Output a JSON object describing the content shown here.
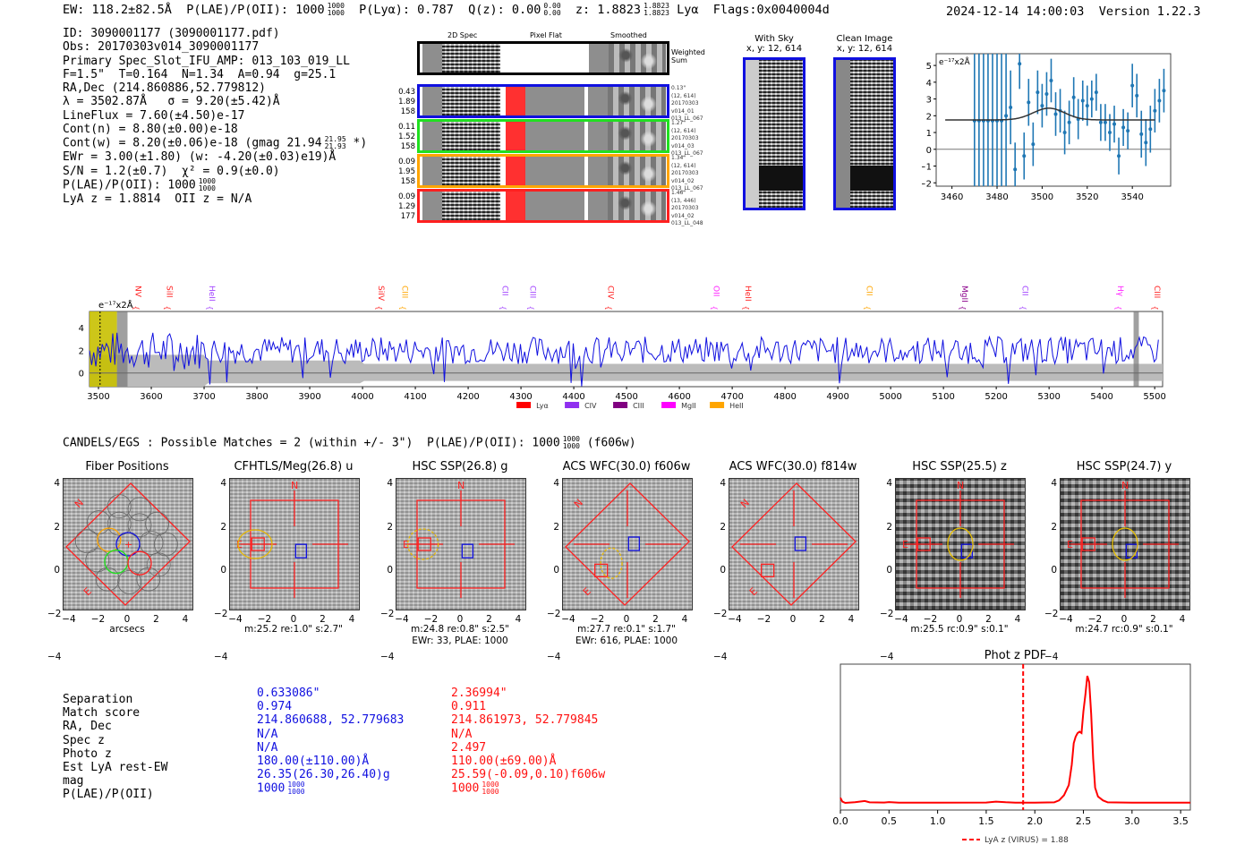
{
  "header": {
    "ew": "EW: 118.2±82.5Å",
    "plae_label": "P(LAE)/P(OII): 1000",
    "plae_hi": "1000",
    "plae_lo": "1000",
    "plya": "P(Lyα): 0.787",
    "qz": "Q(z): 0.00",
    "qz_hi": "0.00",
    "qz_lo": "0.00",
    "z": "z: 1.8823",
    "z_hi": "1.8823",
    "z_lo": "1.8823",
    "line": "Lyα",
    "flags": "Flags:0x0040004d",
    "timestamp": "2024-12-14 14:00:03",
    "version": "Version 1.22.3"
  },
  "info": {
    "id": "ID: 3090001177 (3090001177.pdf)",
    "obs": "Obs: 20170303v014_3090001177",
    "primary": "Primary Spec_Slot_IFU_AMP: 013_103_019_LL",
    "params": "F=1.5\"  T=0.164  N=1.34  A=0.94  g=25.1",
    "radec": "RA,Dec (214.860886,52.779812)",
    "lambda": "λ = 3502.87Å   σ = 9.20(±5.42)Å",
    "lineflux": "LineFlux = 7.60(±4.50)e-17",
    "cont_n": "Cont(n) = 8.80(±0.00)e-18",
    "cont_w": "Cont(w) = 8.20(±0.06)e-18 (gmag 21.94",
    "cont_w_hi": "21.95",
    "cont_w_lo": "21.93",
    "cont_w_tail": " *)",
    "ewr": "EWr = 3.00(±1.80) (w: -4.20(±0.03)e19)Å",
    "sn": "S/N = 1.2(±0.7)  χ² = 0.9(±0.0)",
    "plae": "P(LAE)/P(OII): 1000",
    "plae_hi": "1000",
    "plae_lo": "1000",
    "lyaz": "LyA z = 1.8814  OII z = N/A"
  },
  "fiber_panel": {
    "col_labels": [
      "2D Spec",
      "Pixel Flat",
      "Smoothed"
    ],
    "weighted_sum_label": "Weighted\nSum",
    "fibers": [
      {
        "color": "#1010e0",
        "stats": [
          "0.43",
          "1.89",
          "158"
        ],
        "meta": [
          "0.13\"",
          "(12, 614)",
          "20170303",
          "v014_01",
          "013_LL_067"
        ]
      },
      {
        "color": "#20e020",
        "stats": [
          "0.11",
          "1.52",
          "158"
        ],
        "meta": [
          "1.27\"",
          "(12, 614)",
          "20170303",
          "v014_03",
          "013_LL_067"
        ]
      },
      {
        "color": "#ffa500",
        "stats": [
          "0.09",
          "1.95",
          "158"
        ],
        "meta": [
          "1.34\"",
          "(12, 614)",
          "20170303",
          "v014_02",
          "013_LL_067"
        ]
      },
      {
        "color": "#ff2020",
        "stats": [
          "0.09",
          "1.29",
          "177"
        ],
        "meta": [
          "1.46\"",
          "(13, 446)",
          "20170303",
          "v014_02",
          "013_LL_048"
        ]
      }
    ]
  },
  "thumbs": {
    "with_sky": {
      "title": "With Sky",
      "coords": "x, y: 12, 614"
    },
    "clean": {
      "title": "Clean Image",
      "coords": "x, y: 12, 614"
    }
  },
  "chart_data": [
    {
      "type": "scatter",
      "title": "",
      "annotation": "e⁻¹⁷x2Å",
      "xlim": [
        3453,
        3557
      ],
      "ylim": [
        -2.2,
        5.7
      ],
      "xticks": [
        3460,
        3480,
        3500,
        3520,
        3540
      ],
      "yticks": [
        -2,
        -1,
        0,
        1,
        2,
        3,
        4,
        5
      ],
      "points": [
        {
          "x": 3470,
          "y": 1.7,
          "e": 9
        },
        {
          "x": 3472,
          "y": 1.7,
          "e": 9
        },
        {
          "x": 3474,
          "y": 1.7,
          "e": 9
        },
        {
          "x": 3476,
          "y": 1.7,
          "e": 9
        },
        {
          "x": 3478,
          "y": 1.7,
          "e": 9
        },
        {
          "x": 3480,
          "y": 1.7,
          "e": 9
        },
        {
          "x": 3482,
          "y": 1.7,
          "e": 9
        },
        {
          "x": 3484,
          "y": 2.0,
          "e": 9
        },
        {
          "x": 3486,
          "y": 2.5,
          "e": 2.2
        },
        {
          "x": 3488,
          "y": -1.2,
          "e": 1.6
        },
        {
          "x": 3490,
          "y": 5.1,
          "e": 1.5
        },
        {
          "x": 3492,
          "y": -0.4,
          "e": 1.4
        },
        {
          "x": 3494,
          "y": 2.8,
          "e": 1.4
        },
        {
          "x": 3496,
          "y": 0.3,
          "e": 1.3
        },
        {
          "x": 3498,
          "y": 3.4,
          "e": 1.3
        },
        {
          "x": 3500,
          "y": 2.6,
          "e": 1.3
        },
        {
          "x": 3502,
          "y": 3.3,
          "e": 1.3
        },
        {
          "x": 3504,
          "y": 4.1,
          "e": 1.3
        },
        {
          "x": 3506,
          "y": 2.1,
          "e": 1.3
        },
        {
          "x": 3508,
          "y": 2.3,
          "e": 1.3
        },
        {
          "x": 3510,
          "y": 1.0,
          "e": 1.3
        },
        {
          "x": 3512,
          "y": 1.6,
          "e": 1.3
        },
        {
          "x": 3514,
          "y": 3.1,
          "e": 1.2
        },
        {
          "x": 3516,
          "y": 1.8,
          "e": 1.2
        },
        {
          "x": 3518,
          "y": 2.9,
          "e": 1.2
        },
        {
          "x": 3520,
          "y": 2.6,
          "e": 1.2
        },
        {
          "x": 3522,
          "y": 3.0,
          "e": 1.1
        },
        {
          "x": 3524,
          "y": 3.4,
          "e": 1.1
        },
        {
          "x": 3526,
          "y": 1.6,
          "e": 1.1
        },
        {
          "x": 3528,
          "y": 1.6,
          "e": 1.1
        },
        {
          "x": 3530,
          "y": 1.0,
          "e": 1.1
        },
        {
          "x": 3532,
          "y": 1.5,
          "e": 1.1
        },
        {
          "x": 3534,
          "y": -0.4,
          "e": 1.1
        },
        {
          "x": 3536,
          "y": 1.3,
          "e": 1.1
        },
        {
          "x": 3538,
          "y": 1.1,
          "e": 1.1
        },
        {
          "x": 3540,
          "y": 3.8,
          "e": 1.3
        },
        {
          "x": 3542,
          "y": 3.2,
          "e": 1.3
        },
        {
          "x": 3544,
          "y": 0.9,
          "e": 1.4
        },
        {
          "x": 3546,
          "y": 0.4,
          "e": 1.4
        },
        {
          "x": 3548,
          "y": 1.2,
          "e": 1.4
        },
        {
          "x": 3550,
          "y": 2.3,
          "e": 1.3
        },
        {
          "x": 3552,
          "y": 2.9,
          "e": 1.3
        },
        {
          "x": 3554,
          "y": 3.5,
          "e": 1.3
        }
      ],
      "fit": {
        "continuum": 1.75,
        "amp": 0.7,
        "center": 3503,
        "sigma": 7,
        "xrange": [
          3457,
          3550
        ]
      }
    },
    {
      "type": "line",
      "title": "",
      "annotation": "e⁻¹⁷x2Å",
      "xlim": [
        3483,
        5515
      ],
      "ylim": [
        -1.2,
        5.4
      ],
      "xticks": [
        3500,
        3600,
        3700,
        3800,
        3900,
        4000,
        4100,
        4200,
        4300,
        4400,
        4500,
        4600,
        4700,
        4800,
        4900,
        5000,
        5100,
        5200,
        5300,
        5400,
        5500
      ],
      "yticks": [
        0,
        2,
        4
      ],
      "series_description": "noisy blue spectrum mean ~2, grey error band ~±1",
      "line_markers": [
        {
          "label": "NV",
          "x": 3570,
          "color": "#ff2020"
        },
        {
          "label": "SiII",
          "x": 3630,
          "color": "#ff2020"
        },
        {
          "label": "HeII",
          "x": 3710,
          "color": "#a040ff"
        },
        {
          "label": "SiIV",
          "x": 4030,
          "color": "#ff2020"
        },
        {
          "label": "CIII",
          "x": 4075,
          "color": "#ffa500"
        },
        {
          "label": "CII",
          "x": 4265,
          "color": "#a040ff"
        },
        {
          "label": "CIII",
          "x": 4318,
          "color": "#a040ff"
        },
        {
          "label": "CIV",
          "x": 4465,
          "color": "#ff2020"
        },
        {
          "label": "OII",
          "x": 4665,
          "color": "#ff20ff"
        },
        {
          "label": "HeII",
          "x": 4725,
          "color": "#ff2020"
        },
        {
          "label": "CII",
          "x": 4955,
          "color": "#ffa500"
        },
        {
          "label": "MgII",
          "x": 5135,
          "color": "#8b008b"
        },
        {
          "label": "CII",
          "x": 5250,
          "color": "#a040ff"
        },
        {
          "label": "Hγ",
          "x": 5430,
          "color": "#ff20ff"
        },
        {
          "label": "CIII",
          "x": 5500,
          "color": "#ff2020"
        }
      ],
      "highlight": {
        "from": 3483,
        "to": 3535,
        "color": "#c8c000"
      },
      "masked": [
        {
          "from": 3535,
          "to": 3555
        },
        {
          "from": 5460,
          "to": 5470
        }
      ],
      "dashed_x": 3503,
      "legend": [
        {
          "label": "Lyα",
          "color": "#ff0000"
        },
        {
          "label": "CIV",
          "color": "#9030f0"
        },
        {
          "label": "CIII",
          "color": "#800080"
        },
        {
          "label": "MgII",
          "color": "#ff00ff"
        },
        {
          "label": "HeII",
          "color": "#ffa500"
        }
      ],
      "legend_position": "bottom-center"
    },
    {
      "type": "line",
      "title": "Phot z PDF",
      "xlim": [
        0,
        3.6
      ],
      "ylim": [
        0,
        1.05
      ],
      "xticks": [
        0.0,
        0.5,
        1.0,
        1.5,
        2.0,
        2.5,
        3.0,
        3.5
      ],
      "x": [
        0,
        0.02,
        0.05,
        0.15,
        0.25,
        0.3,
        0.45,
        0.5,
        0.6,
        1.0,
        1.5,
        1.6,
        1.7,
        1.8,
        2.0,
        2.2,
        2.25,
        2.3,
        2.35,
        2.38,
        2.4,
        2.42,
        2.44,
        2.46,
        2.48,
        2.5,
        2.52,
        2.54,
        2.56,
        2.58,
        2.6,
        2.62,
        2.65,
        2.7,
        2.75,
        3.0,
        3.6
      ],
      "y": [
        0.04,
        0.01,
        0.0,
        0.005,
        0.015,
        0.004,
        0.003,
        0.006,
        0.002,
        0.002,
        0.003,
        0.01,
        0.005,
        0.002,
        0.002,
        0.004,
        0.02,
        0.06,
        0.14,
        0.3,
        0.47,
        0.52,
        0.55,
        0.56,
        0.55,
        0.72,
        0.85,
        1.0,
        0.95,
        0.7,
        0.35,
        0.12,
        0.05,
        0.02,
        0.004,
        0.002,
        0.002
      ],
      "vline": {
        "x": 1.88,
        "label": "LyA z (VIRUS) = 1.88",
        "color": "#ff0000"
      },
      "legend_position": "bottom-center"
    }
  ],
  "matches": {
    "title": "CANDELS/EGS : Possible Matches = 2 (within +/- 3\")  P(LAE)/P(OII): 1000",
    "title_hi": "1000",
    "title_lo": "1000",
    "title_tail": " (f606w)",
    "row_labels": [
      "Separation",
      "Match score",
      "RA, Dec",
      "Spec z",
      "Photo z",
      "Est LyA rest-EW",
      "mag",
      "P(LAE)/P(OII)"
    ],
    "match1": {
      "color": "#1010e0",
      "values": [
        "0.633086\"",
        "0.974",
        "214.860688, 52.779683",
        "N/A",
        "N/A",
        "180.00(±110.00)Å",
        "26.35(26.30,26.40)g",
        "1000"
      ],
      "plae_hi": "1000",
      "plae_lo": "1000"
    },
    "match2": {
      "color": "#ff1010",
      "values": [
        "2.36994\"",
        "0.911",
        "214.861973, 52.779845",
        "N/A",
        "2.497",
        "110.00(±69.00)Å",
        "25.59(-0.09,0.10)f606w",
        "1000"
      ],
      "plae_hi": "1000",
      "plae_lo": "1000"
    }
  },
  "cutouts": [
    {
      "title": "Fiber Positions",
      "foot": [
        "arcsecs"
      ]
    },
    {
      "title": "CFHTLS/Meg(26.8) u",
      "foot": [
        "m:25.2  re:1.0\"  s:2.7\""
      ]
    },
    {
      "title": "HSC SSP(26.8) g",
      "foot": [
        "m:24.8  re:0.8\"  s:2.5\"",
        "EWr: 33, PLAE: 1000"
      ]
    },
    {
      "title": "ACS WFC(30.0) f606w",
      "foot": [
        "m:27.7  re:0.1\"  s:1.7\"",
        "EWr: 616, PLAE: 1000"
      ]
    },
    {
      "title": "ACS WFC(30.0) f814w",
      "foot": []
    },
    {
      "title": "HSC SSP(25.5) z",
      "foot": [
        "m:25.5 rc:0.9\"  s:0.1\""
      ]
    },
    {
      "title": "HSC SSP(24.7) y",
      "foot": [
        "m:24.7 rc:0.9\"  s:0.1\""
      ]
    }
  ],
  "cutout_axis": {
    "ticks": [
      "4",
      "2",
      "0",
      "−2",
      "−4"
    ],
    "xticks": [
      "−4",
      "−2",
      "0",
      "2",
      "4"
    ],
    "north": "N",
    "east": "E"
  }
}
